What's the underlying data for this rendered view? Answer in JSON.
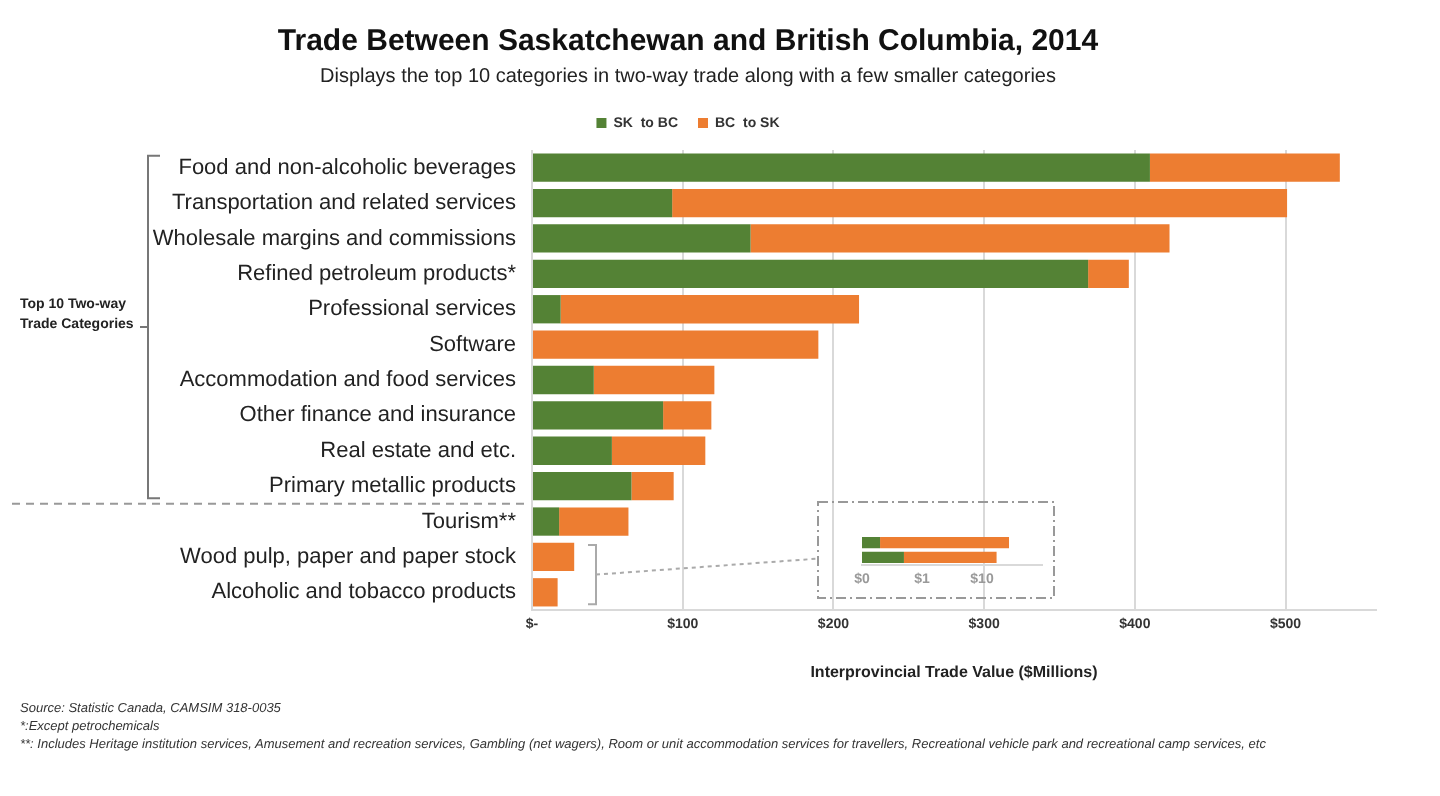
{
  "chart_data": [
    {
      "type": "bar",
      "title": "Trade Between Saskatchewan and British Columbia, 2014",
      "subtitle": "Displays the top 10 categories in two-way trade along with a few smaller categories",
      "xlabel": "Interprovincial Trade Value ($Millions)",
      "orientation": "horizontal",
      "stacked": true,
      "categories": [
        "Food and non-alcoholic beverages",
        "Transportation and related services",
        "Wholesale margins and commissions",
        "Refined petroleum products*",
        "Professional services",
        "Software",
        "Accommodation and food services",
        "Other finance and insurance",
        "Real estate and etc.",
        "Primary metallic products",
        "Tourism**",
        "Wood pulp, paper and paper stock",
        "Alcoholic and tobacco products"
      ],
      "series": [
        {
          "name": "SK  to BC",
          "color": "#548235",
          "values": [
            410,
            93,
            145,
            369,
            19,
            0,
            41,
            87,
            53,
            66,
            18,
            0,
            0
          ]
        },
        {
          "name": "BC  to SK",
          "color": "#ed7d31",
          "values": [
            126,
            408,
            278,
            27,
            198,
            190,
            80,
            32,
            62,
            28,
            46,
            28,
            17
          ]
        }
      ],
      "xlim": [
        0,
        560
      ],
      "xticks": [
        {
          "value": 0,
          "label": "$-"
        },
        {
          "value": 100,
          "label": "$100"
        },
        {
          "value": 200,
          "label": "$200"
        },
        {
          "value": 300,
          "label": "$300"
        },
        {
          "value": 400,
          "label": "$400"
        },
        {
          "value": 500,
          "label": "$500"
        }
      ],
      "grid": "x",
      "legend": "top",
      "annotations": [
        "Top 10 Two-way Trade Categories",
        "Source: Statistic Canada, CAMSIM 318-0035",
        "*:Except petrochemicals",
        "**: Includes  Heritage institution services, Amusement and recreation services, Gambling (net wagers), Room or unit accommodation services for    travellers,  Recreational     vehicle park and recreational camp services, etc"
      ]
    },
    {
      "type": "bar",
      "orientation": "horizontal",
      "stacked": true,
      "categories": [
        null,
        null
      ],
      "series": [
        {
          "color": "#548235",
          "values": [
            0.2,
            0.5
          ]
        },
        {
          "color": "#ed7d31",
          "values": [
            28,
            17
          ]
        }
      ],
      "log": "x",
      "xlim": [
        0.1,
        100
      ],
      "xticks": [
        {
          "value": 0.1,
          "label": "$0"
        },
        {
          "value": 1,
          "label": "$1"
        },
        {
          "value": 10,
          "label": "$10"
        }
      ]
    }
  ]
}
